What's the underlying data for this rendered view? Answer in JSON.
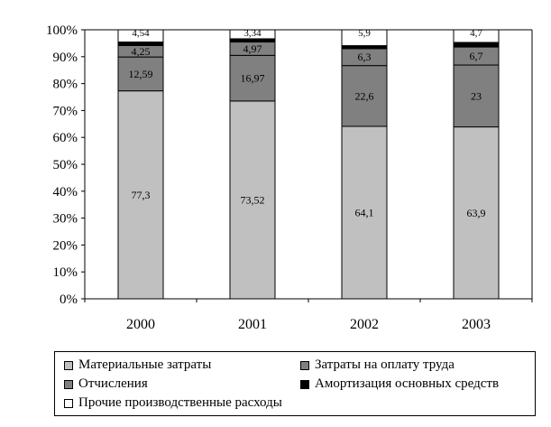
{
  "chart_data": {
    "type": "bar",
    "stacked": true,
    "categories": [
      "2000",
      "2001",
      "2002",
      "2003"
    ],
    "ylim": [
      0,
      100
    ],
    "yticks": [
      "0%",
      "10%",
      "20%",
      "30%",
      "40%",
      "50%",
      "60%",
      "70%",
      "80%",
      "90%",
      "100%"
    ],
    "grid": false,
    "legend_position": "bottom",
    "series": [
      {
        "name": "Материальные затраты",
        "color": "#c0c0c0",
        "values": [
          77.3,
          73.52,
          64.1,
          63.9
        ],
        "labels": [
          "77,3",
          "73,52",
          "64,1",
          "63,9"
        ]
      },
      {
        "name": "Затраты на оплату труда",
        "color": "#808080",
        "values": [
          12.59,
          16.97,
          22.6,
          23
        ],
        "labels": [
          "12,59",
          "16,97",
          "22,6",
          "23"
        ]
      },
      {
        "name": "Отчисления",
        "color": "#808080",
        "values": [
          4.25,
          4.97,
          6.3,
          6.7
        ],
        "labels": [
          "4,25",
          "4,97",
          "6,3",
          "6,7"
        ]
      },
      {
        "name": "Амортизация основных средств",
        "color": "#000000",
        "values": [
          1.32,
          1.2,
          1.1,
          1.7
        ],
        "labels": [
          "",
          "",
          "",
          ""
        ]
      },
      {
        "name": "Прочие производственные расходы",
        "color": "#ffffff",
        "values": [
          4.54,
          3.34,
          5.9,
          4.7
        ],
        "labels": [
          "4,54",
          "3,34",
          "5,9",
          "4,7"
        ]
      }
    ]
  }
}
